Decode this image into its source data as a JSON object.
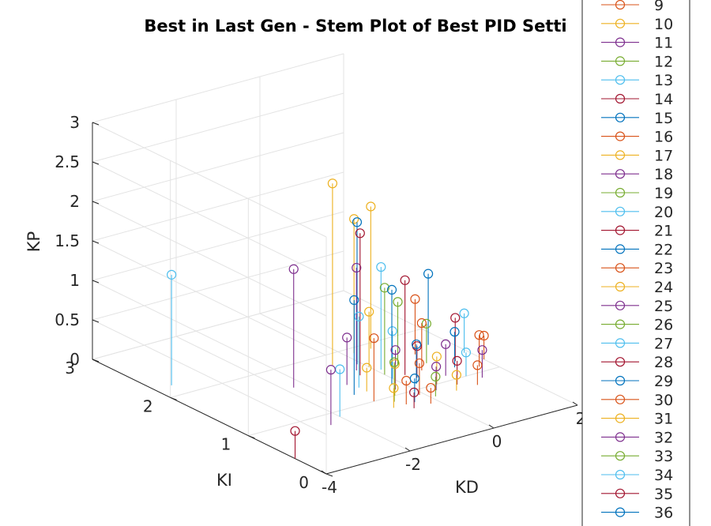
{
  "chart_data": {
    "type": "scatter",
    "subtype": "stem3",
    "title": "Best in Last Gen - Stem Plot of Best PID Setti",
    "xlabel": "KD",
    "ylabel": "KI",
    "zlabel": "KP",
    "xlim": [
      -4,
      2
    ],
    "ylim": [
      0,
      3
    ],
    "zlim": [
      0,
      3
    ],
    "x_ticks": [
      "-4",
      "-2",
      "0",
      "2"
    ],
    "y_ticks": [
      "0",
      "1",
      "2",
      "3"
    ],
    "z_ticks": [
      "0",
      "0.5",
      "1",
      "1.5",
      "2",
      "2.5",
      "3"
    ],
    "grid": true,
    "legend_position": "right",
    "legend_entries": [
      "9",
      "10",
      "11",
      "12",
      "13",
      "14",
      "15",
      "16",
      "17",
      "18",
      "19",
      "20",
      "21",
      "22",
      "23",
      "24",
      "25",
      "26",
      "27",
      "28",
      "29",
      "30",
      "31",
      "32",
      "33",
      "34",
      "35",
      "36"
    ],
    "series_colors": [
      "#D95319",
      "#EDB120",
      "#7E2F8E",
      "#77AC30",
      "#4DBEEE",
      "#A2142F",
      "#0072BD"
    ],
    "points": [
      {
        "x": -3.6,
        "y": 2.2,
        "z": 1.4,
        "c": 4
      },
      {
        "x": -4.0,
        "y": 0.4,
        "z": 0.35,
        "c": 5
      },
      {
        "x": -2.4,
        "y": 0.8,
        "z": 0.7,
        "c": 2
      },
      {
        "x": -2.0,
        "y": 0.9,
        "z": 0.6,
        "c": 4
      },
      {
        "x": -1.8,
        "y": 1.6,
        "z": 1.5,
        "c": 2
      },
      {
        "x": -1.1,
        "y": 1.2,
        "z": 1.2,
        "c": 6
      },
      {
        "x": -1.0,
        "y": 1.0,
        "z": 0.8,
        "c": 0
      },
      {
        "x": -0.9,
        "y": 1.4,
        "z": 0.6,
        "c": 2
      },
      {
        "x": -0.8,
        "y": 1.2,
        "z": 0.3,
        "c": 1
      },
      {
        "x": -0.6,
        "y": 0.8,
        "z": 0.3,
        "c": 0
      },
      {
        "x": -0.5,
        "y": 1.8,
        "z": 2.3,
        "c": 1
      },
      {
        "x": -0.4,
        "y": 1.5,
        "z": 1.8,
        "c": 5
      },
      {
        "x": -0.3,
        "y": 1.6,
        "z": 1.3,
        "c": 2
      },
      {
        "x": -0.2,
        "y": 1.2,
        "z": 1.2,
        "c": 6
      },
      {
        "x": -0.1,
        "y": 1.7,
        "z": 1.8,
        "c": 6
      },
      {
        "x": 0.0,
        "y": 1.4,
        "z": 1.1,
        "c": 3
      },
      {
        "x": 0.1,
        "y": 1.5,
        "z": 1.3,
        "c": 4
      },
      {
        "x": 0.2,
        "y": 1.9,
        "z": 1.7,
        "c": 1
      },
      {
        "x": 0.3,
        "y": 1.3,
        "z": 1.2,
        "c": 5
      },
      {
        "x": 0.6,
        "y": 1.9,
        "z": 1.8,
        "c": 1
      },
      {
        "x": -0.7,
        "y": 0.9,
        "z": 0.5,
        "c": 3
      },
      {
        "x": -0.5,
        "y": 1.0,
        "z": 0.4,
        "c": 1
      },
      {
        "x": -0.3,
        "y": 1.1,
        "z": 0.5,
        "c": 2
      },
      {
        "x": -0.1,
        "y": 0.9,
        "z": 0.4,
        "c": 0
      },
      {
        "x": 0.0,
        "y": 1.3,
        "z": 0.6,
        "c": 4
      },
      {
        "x": 0.2,
        "y": 1.1,
        "z": 0.5,
        "c": 6
      },
      {
        "x": 0.4,
        "y": 1.2,
        "z": 0.4,
        "c": 5
      },
      {
        "x": 0.5,
        "y": 1.0,
        "z": 0.35,
        "c": 1
      },
      {
        "x": 0.7,
        "y": 1.3,
        "z": 0.6,
        "c": 0
      },
      {
        "x": 0.9,
        "y": 1.1,
        "z": 0.4,
        "c": 2
      },
      {
        "x": 1.0,
        "y": 1.4,
        "z": 0.5,
        "c": 3
      },
      {
        "x": 1.2,
        "y": 1.0,
        "z": 0.3,
        "c": 4
      },
      {
        "x": 1.3,
        "y": 1.2,
        "z": 0.45,
        "c": 6
      },
      {
        "x": 1.5,
        "y": 1.3,
        "z": 0.55,
        "c": 5
      },
      {
        "x": 1.7,
        "y": 1.1,
        "z": 0.4,
        "c": 0
      },
      {
        "x": 1.9,
        "y": 1.4,
        "z": 0.5,
        "c": 4
      },
      {
        "x": 2.0,
        "y": 1.2,
        "z": 0.3,
        "c": 0
      },
      {
        "x": -0.9,
        "y": 0.8,
        "z": 0.25,
        "c": 1
      },
      {
        "x": -0.6,
        "y": 0.7,
        "z": 0.2,
        "c": 5
      },
      {
        "x": -0.4,
        "y": 0.8,
        "z": 0.3,
        "c": 6
      },
      {
        "x": -0.2,
        "y": 0.7,
        "z": 0.2,
        "c": 0
      },
      {
        "x": 0.1,
        "y": 0.8,
        "z": 0.25,
        "c": 3
      },
      {
        "x": 0.3,
        "y": 0.9,
        "z": 0.3,
        "c": 2
      },
      {
        "x": 0.6,
        "y": 0.8,
        "z": 0.2,
        "c": 1
      },
      {
        "x": 0.8,
        "y": 0.9,
        "z": 0.3,
        "c": 5
      },
      {
        "x": 1.1,
        "y": 0.8,
        "z": 0.25,
        "c": 0
      },
      {
        "x": 1.4,
        "y": 0.9,
        "z": 0.35,
        "c": 2
      },
      {
        "x": -0.8,
        "y": 1.3,
        "z": 0.9,
        "c": 4
      },
      {
        "x": 0.0,
        "y": 1.6,
        "z": 0.7,
        "c": 1
      },
      {
        "x": 0.5,
        "y": 1.5,
        "z": 0.8,
        "c": 3
      },
      {
        "x": 1.1,
        "y": 1.6,
        "z": 0.7,
        "c": 0
      },
      {
        "x": 1.6,
        "y": 1.7,
        "z": 0.9,
        "c": 6
      }
    ]
  }
}
